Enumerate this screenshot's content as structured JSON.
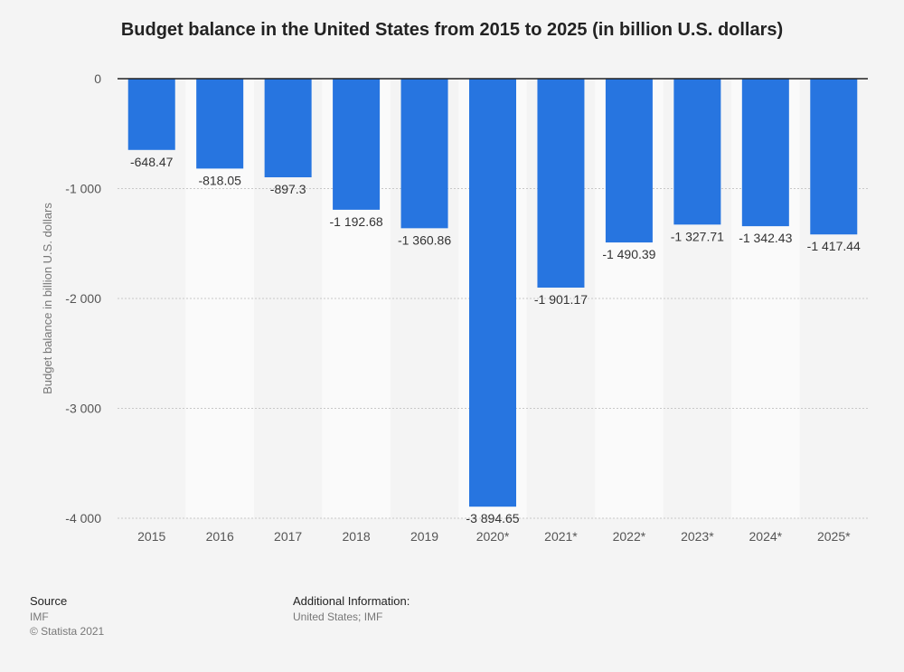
{
  "chart_data": {
    "type": "bar",
    "title": "Budget balance in the United States from 2015 to 2025 (in billion U.S. dollars)",
    "xlabel": "",
    "ylabel": "Budget balance in billion U.S. dollars",
    "categories": [
      "2015",
      "2016",
      "2017",
      "2018",
      "2019",
      "2020*",
      "2021*",
      "2022*",
      "2023*",
      "2024*",
      "2025*"
    ],
    "values": [
      -648.47,
      -818.05,
      -897.3,
      -1192.68,
      -1360.86,
      -3894.65,
      -1901.17,
      -1490.39,
      -1327.71,
      -1342.43,
      -1417.44
    ],
    "value_labels": [
      "-648.47",
      "-818.05",
      "-897.3",
      "-1 192.68",
      "-1 360.86",
      "-3 894.65",
      "-1 901.17",
      "-1 490.39",
      "-1 327.71",
      "-1 342.43",
      "-1 417.44"
    ],
    "yticks": [
      0,
      -1000,
      -2000,
      -3000,
      -4000
    ],
    "ytick_labels": [
      "0",
      "-1 000",
      "-2 000",
      "-3 000",
      "-4 000"
    ],
    "ylim": [
      -4000,
      0
    ],
    "grid": true,
    "bar_color": "#2775e0"
  },
  "footer": {
    "source_heading": "Source",
    "source_text": "IMF",
    "copyright": "© Statista 2021",
    "additional_heading": "Additional Information:",
    "additional_text": "United States; IMF"
  }
}
